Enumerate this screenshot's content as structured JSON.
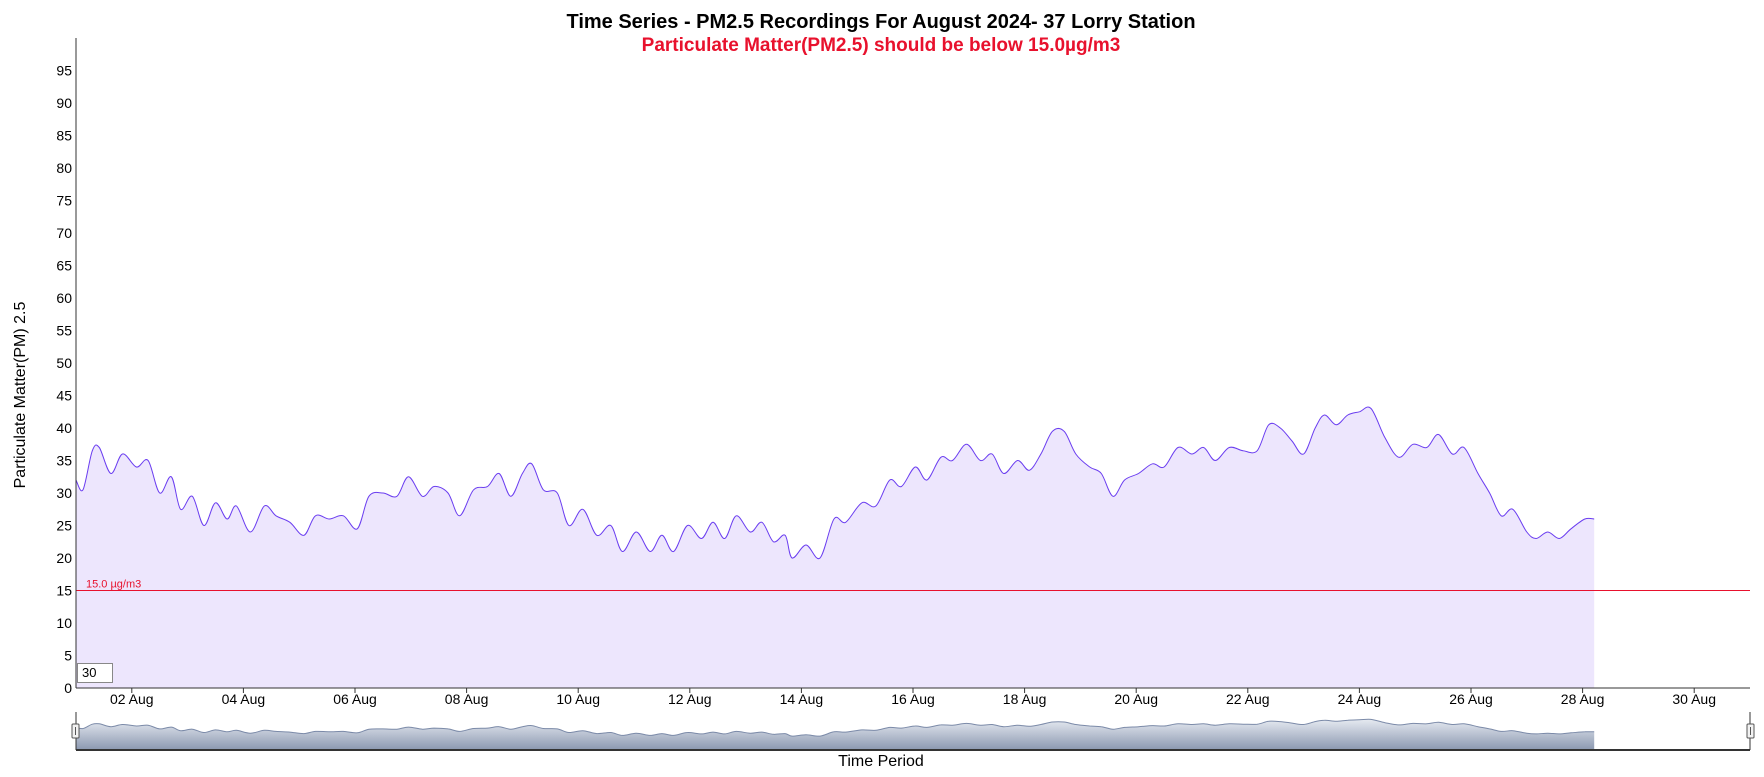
{
  "chart_data": {
    "type": "area",
    "title": "Time Series - PM2.5 Recordings For August 2024- 37 Lorry Station",
    "subtitle": "Particulate Matter(PM2.5) should be below 15.0µg/m3",
    "xlabel": "Time Period",
    "ylabel": "Particulate Matter(PM) 2.5",
    "ylim": [
      0,
      100
    ],
    "xlim": [
      "2024-08-01",
      "2024-08-31"
    ],
    "y_ticks": [
      "0",
      "5",
      "10",
      "15",
      "20",
      "25",
      "30",
      "35",
      "40",
      "45",
      "50",
      "55",
      "60",
      "65",
      "70",
      "75",
      "80",
      "85",
      "90",
      "95"
    ],
    "x_ticks": [
      "02 Aug",
      "04 Aug",
      "06 Aug",
      "08 Aug",
      "10 Aug",
      "12 Aug",
      "14 Aug",
      "16 Aug",
      "18 Aug",
      "20 Aug",
      "22 Aug",
      "24 Aug",
      "26 Aug",
      "28 Aug",
      "30 Aug"
    ],
    "x_tick_dates": [
      "2024-08-02",
      "2024-08-04",
      "2024-08-06",
      "2024-08-08",
      "2024-08-10",
      "2024-08-12",
      "2024-08-14",
      "2024-08-16",
      "2024-08-18",
      "2024-08-20",
      "2024-08-22",
      "2024-08-24",
      "2024-08-26",
      "2024-08-28",
      "2024-08-30"
    ],
    "threshold": {
      "value": 15.0,
      "label": "15.0 µg/m3",
      "color": "#e8112d"
    },
    "series": [
      {
        "color": "#6a3df0",
        "fill": "#ede6fd",
        "points": [
          [
            "2024-08-01T00:00",
            32
          ],
          [
            "2024-08-01T03:00",
            30.5
          ],
          [
            "2024-08-01T07:00",
            36.5
          ],
          [
            "2024-08-01T10:00",
            37
          ],
          [
            "2024-08-01T15:00",
            33
          ],
          [
            "2024-08-01T20:00",
            36
          ],
          [
            "2024-08-02T02:00",
            34
          ],
          [
            "2024-08-02T07:00",
            35
          ],
          [
            "2024-08-02T12:00",
            30
          ],
          [
            "2024-08-02T17:00",
            32.5
          ],
          [
            "2024-08-02T21:00",
            27.5
          ],
          [
            "2024-08-03T02:00",
            29.5
          ],
          [
            "2024-08-03T07:00",
            25
          ],
          [
            "2024-08-03T12:00",
            28.5
          ],
          [
            "2024-08-03T17:00",
            26
          ],
          [
            "2024-08-03T21:00",
            28
          ],
          [
            "2024-08-04T03:00",
            24
          ],
          [
            "2024-08-04T09:00",
            28
          ],
          [
            "2024-08-04T14:00",
            26.5
          ],
          [
            "2024-08-04T20:00",
            25.5
          ],
          [
            "2024-08-05T02:00",
            23.5
          ],
          [
            "2024-08-05T07:00",
            26.5
          ],
          [
            "2024-08-05T13:00",
            26
          ],
          [
            "2024-08-05T19:00",
            26.5
          ],
          [
            "2024-08-06T01:00",
            24.5
          ],
          [
            "2024-08-06T06:00",
            29.5
          ],
          [
            "2024-08-06T12:00",
            30
          ],
          [
            "2024-08-06T18:00",
            29.5
          ],
          [
            "2024-08-06T23:00",
            32.5
          ],
          [
            "2024-08-07T05:00",
            29.5
          ],
          [
            "2024-08-07T10:00",
            31
          ],
          [
            "2024-08-07T16:00",
            30
          ],
          [
            "2024-08-07T21:00",
            26.5
          ],
          [
            "2024-08-08T03:00",
            30.5
          ],
          [
            "2024-08-08T09:00",
            31
          ],
          [
            "2024-08-08T14:00",
            33
          ],
          [
            "2024-08-08T19:00",
            29.5
          ],
          [
            "2024-08-09T00:00",
            33
          ],
          [
            "2024-08-09T04:00",
            34.5
          ],
          [
            "2024-08-09T09:00",
            30.5
          ],
          [
            "2024-08-09T15:00",
            30
          ],
          [
            "2024-08-09T20:00",
            25
          ],
          [
            "2024-08-10T02:00",
            27.5
          ],
          [
            "2024-08-10T08:00",
            23.5
          ],
          [
            "2024-08-10T14:00",
            25
          ],
          [
            "2024-08-10T19:00",
            21
          ],
          [
            "2024-08-11T01:00",
            24
          ],
          [
            "2024-08-11T07:00",
            21
          ],
          [
            "2024-08-11T12:00",
            23.5
          ],
          [
            "2024-08-11T17:00",
            21
          ],
          [
            "2024-08-11T23:00",
            25
          ],
          [
            "2024-08-12T05:00",
            23
          ],
          [
            "2024-08-12T10:00",
            25.5
          ],
          [
            "2024-08-12T15:00",
            23
          ],
          [
            "2024-08-12T20:00",
            26.5
          ],
          [
            "2024-08-13T02:00",
            24
          ],
          [
            "2024-08-13T07:00",
            25.5
          ],
          [
            "2024-08-13T12:00",
            22.5
          ],
          [
            "2024-08-13T17:00",
            23.5
          ],
          [
            "2024-08-13T20:00",
            20
          ],
          [
            "2024-08-14T02:00",
            22
          ],
          [
            "2024-08-14T08:00",
            20
          ],
          [
            "2024-08-14T14:00",
            26
          ],
          [
            "2024-08-14T19:00",
            25.5
          ],
          [
            "2024-08-15T02:00",
            28.5
          ],
          [
            "2024-08-15T08:00",
            28
          ],
          [
            "2024-08-15T14:00",
            32
          ],
          [
            "2024-08-15T19:00",
            31
          ],
          [
            "2024-08-16T01:00",
            34
          ],
          [
            "2024-08-16T06:00",
            32
          ],
          [
            "2024-08-16T12:00",
            35.5
          ],
          [
            "2024-08-16T17:00",
            35
          ],
          [
            "2024-08-16T23:00",
            37.5
          ],
          [
            "2024-08-17T05:00",
            35
          ],
          [
            "2024-08-17T10:00",
            36
          ],
          [
            "2024-08-17T15:00",
            33
          ],
          [
            "2024-08-17T21:00",
            35
          ],
          [
            "2024-08-18T02:00",
            33.5
          ],
          [
            "2024-08-18T07:00",
            36
          ],
          [
            "2024-08-18T12:00",
            39.5
          ],
          [
            "2024-08-18T17:00",
            39.5
          ],
          [
            "2024-08-18T22:00",
            36
          ],
          [
            "2024-08-19T04:00",
            34
          ],
          [
            "2024-08-19T09:00",
            33
          ],
          [
            "2024-08-19T14:00",
            29.5
          ],
          [
            "2024-08-19T19:00",
            32
          ],
          [
            "2024-08-20T01:00",
            33
          ],
          [
            "2024-08-20T07:00",
            34.5
          ],
          [
            "2024-08-20T12:00",
            34
          ],
          [
            "2024-08-20T18:00",
            37
          ],
          [
            "2024-08-21T00:00",
            36
          ],
          [
            "2024-08-21T05:00",
            37
          ],
          [
            "2024-08-21T10:00",
            35
          ],
          [
            "2024-08-21T16:00",
            37
          ],
          [
            "2024-08-21T22:00",
            36.5
          ],
          [
            "2024-08-22T04:00",
            36.5
          ],
          [
            "2024-08-22T09:00",
            40.5
          ],
          [
            "2024-08-22T14:00",
            40
          ],
          [
            "2024-08-22T19:00",
            38
          ],
          [
            "2024-08-23T00:00",
            36
          ],
          [
            "2024-08-23T05:00",
            40
          ],
          [
            "2024-08-23T09:00",
            42
          ],
          [
            "2024-08-23T14:00",
            40.5
          ],
          [
            "2024-08-23T19:00",
            42
          ],
          [
            "2024-08-24T00:00",
            42.5
          ],
          [
            "2024-08-24T05:00",
            43
          ],
          [
            "2024-08-24T11:00",
            38.5
          ],
          [
            "2024-08-24T17:00",
            35.5
          ],
          [
            "2024-08-24T23:00",
            37.5
          ],
          [
            "2024-08-25T05:00",
            37
          ],
          [
            "2024-08-25T10:00",
            39
          ],
          [
            "2024-08-25T16:00",
            36
          ],
          [
            "2024-08-25T21:00",
            37
          ],
          [
            "2024-08-26T03:00",
            33
          ],
          [
            "2024-08-26T08:00",
            30
          ],
          [
            "2024-08-26T13:00",
            26.5
          ],
          [
            "2024-08-26T18:00",
            27.5
          ],
          [
            "2024-08-27T00:00",
            24
          ],
          [
            "2024-08-27T04:00",
            23
          ],
          [
            "2024-08-27T09:00",
            24
          ],
          [
            "2024-08-27T14:00",
            23
          ],
          [
            "2024-08-27T19:00",
            24.5
          ],
          [
            "2024-08-28T01:00",
            26
          ],
          [
            "2024-08-28T05:00",
            26
          ]
        ]
      }
    ],
    "legend": false,
    "grid": false,
    "navigator": {
      "visible": true
    }
  },
  "controls": {
    "smoothing_value": "30"
  },
  "colors": {
    "title": "#000000",
    "subtitle": "#e8112d",
    "line": "#6a3df0",
    "area_fill": "#ede6fd",
    "threshold": "#e8112d",
    "navigator_fill": "#a9b4c6",
    "navigator_line": "#7b8aa8"
  }
}
